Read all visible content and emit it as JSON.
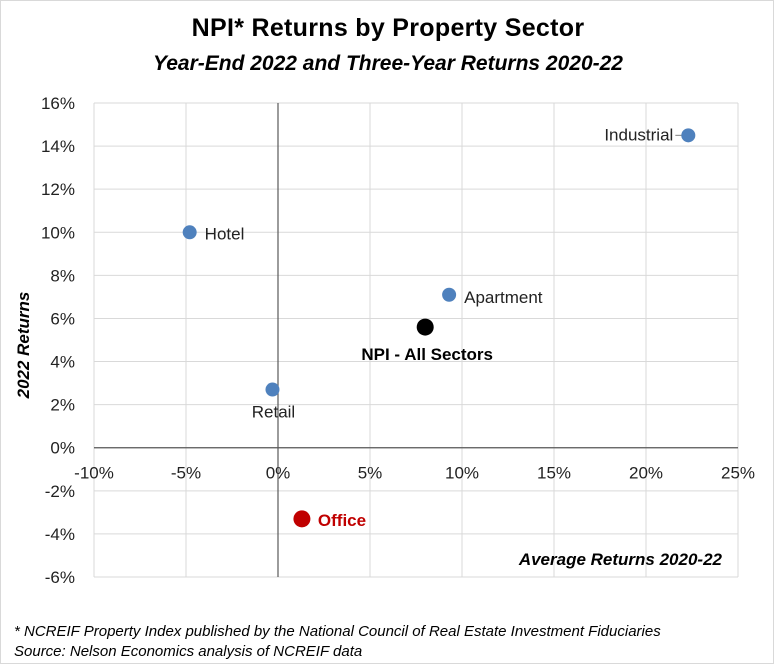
{
  "chart_data": {
    "type": "scatter",
    "title": "NPI* Returns by Property Sector",
    "subtitle": "Year-End 2022 and Three-Year Returns 2020-22",
    "xlabel": "Average Returns 2020-22",
    "ylabel": "2022 Returns",
    "xlim": [
      -10,
      25
    ],
    "ylim": [
      -6,
      16
    ],
    "x_ticks": [
      "-10%",
      "-5%",
      "0%",
      "5%",
      "10%",
      "15%",
      "20%",
      "25%"
    ],
    "y_ticks": [
      "16%",
      "14%",
      "12%",
      "10%",
      "8%",
      "6%",
      "4%",
      "2%",
      "0%",
      "-2%",
      "-4%",
      "-6%"
    ],
    "grid": true,
    "points": [
      {
        "label": "Industrial",
        "x": 22.3,
        "y": 14.5,
        "color": "#4f81bd",
        "bold": false
      },
      {
        "label": "Hotel",
        "x": -4.8,
        "y": 10.0,
        "color": "#4f81bd",
        "bold": false
      },
      {
        "label": "Apartment",
        "x": 9.3,
        "y": 7.1,
        "color": "#4f81bd",
        "bold": false
      },
      {
        "label": "NPI - All Sectors",
        "x": 8.0,
        "y": 5.6,
        "color": "#000000",
        "bold": true
      },
      {
        "label": "Retail",
        "x": -0.3,
        "y": 2.7,
        "color": "#4f81bd",
        "bold": false
      },
      {
        "label": "Office",
        "x": 1.3,
        "y": -3.3,
        "color": "#c00000",
        "bold": true
      }
    ]
  },
  "footnote": {
    "line1": "* NCREIF Property Index published by the National Council of Real Estate Investment Fiduciaries",
    "line2": "Source: Nelson Economics analysis of NCREIF data"
  }
}
